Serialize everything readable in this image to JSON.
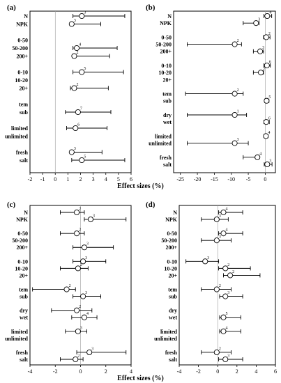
{
  "figure": {
    "shared_xlabel_top": "Effect sizes (%)",
    "shared_xlabel_bottom": "Effect sizes (%)"
  },
  "chart_data": [
    {
      "panel": "(a)",
      "type": "forest",
      "xlim": [
        -2,
        6
      ],
      "xticks": [
        -2,
        -1,
        0,
        1,
        2,
        3,
        4,
        5,
        6
      ],
      "zero_line": true,
      "rows": [
        {
          "label": "N",
          "mean": 2.1,
          "low": 1.4,
          "high": 5.5,
          "n": "3"
        },
        {
          "label": "NPK",
          "mean": 1.3,
          "low": 1.25,
          "high": 3.6,
          "n": "3"
        },
        {
          "label": "",
          "mean": null
        },
        {
          "label": "0-50",
          "mean": null
        },
        {
          "label": "50-200",
          "mean": 1.7,
          "low": 1.4,
          "high": 4.9,
          "n": "4"
        },
        {
          "label": "200+",
          "mean": 1.5,
          "low": 1.35,
          "high": 4.3,
          "n": "2"
        },
        {
          "label": "",
          "mean": null
        },
        {
          "label": "0-10",
          "mean": 2.1,
          "low": 1.4,
          "high": 5.4,
          "n": "5"
        },
        {
          "label": "10-20",
          "mean": null
        },
        {
          "label": "20+",
          "mean": 1.5,
          "low": 1.2,
          "high": 4.2,
          "n": "2"
        },
        {
          "label": "",
          "mean": null
        },
        {
          "label": "tem",
          "mean": null
        },
        {
          "label": "sub",
          "mean": 1.8,
          "low": 0.8,
          "high": 4.4,
          "n": "7"
        },
        {
          "label": "",
          "mean": null
        },
        {
          "label": "limited",
          "mean": 1.6,
          "low": 0.9,
          "high": 4.1,
          "n": "6"
        },
        {
          "label": "unlimited",
          "mean": null
        },
        {
          "label": "",
          "mean": null
        },
        {
          "label": "fresh",
          "mean": 1.3,
          "low": 1.2,
          "high": 3.7,
          "n": "3"
        },
        {
          "label": "salt",
          "mean": 2.1,
          "low": 1.3,
          "high": 5.5,
          "n": "5"
        }
      ]
    },
    {
      "panel": "(b)",
      "type": "forest",
      "xlim": [
        -27,
        3
      ],
      "xticks": [
        -25,
        -20,
        -15,
        -10,
        -5,
        0
      ],
      "zero_line": true,
      "rows": [
        {
          "label": "N",
          "mean": 0.6,
          "low": -0.4,
          "high": 1.9,
          "n": "4"
        },
        {
          "label": "NPK",
          "mean": -2.7,
          "low": -6.5,
          "high": -1.8,
          "n": "3"
        },
        {
          "label": "",
          "mean": null
        },
        {
          "label": "0-50",
          "mean": 0.3,
          "low": -0.5,
          "high": 1.4,
          "n": "2"
        },
        {
          "label": "50-200",
          "mean": -9.0,
          "low": -23.0,
          "high": -7.0,
          "n": "2"
        },
        {
          "label": "200+",
          "mean": -1.5,
          "low": -3.5,
          "high": -0.5,
          "n": "3"
        },
        {
          "label": "",
          "mean": null
        },
        {
          "label": "0-10",
          "mean": 0.5,
          "low": -0.4,
          "high": 1.5,
          "n": "6"
        },
        {
          "label": "10-20",
          "mean": -1.3,
          "low": -3.5,
          "high": -0.5,
          "n": "2"
        },
        {
          "label": "20+",
          "mean": null
        },
        {
          "label": "",
          "mean": null
        },
        {
          "label": "tem",
          "mean": -9.0,
          "low": -23.5,
          "high": -6.5,
          "n": "2"
        },
        {
          "label": "sub",
          "mean": 0.4,
          "low": -0.2,
          "high": 1.1,
          "n": "5"
        },
        {
          "label": "",
          "mean": null
        },
        {
          "label": "dry",
          "mean": -9.0,
          "low": -23.0,
          "high": -5.5,
          "n": "1"
        },
        {
          "label": "wet",
          "mean": 0.3,
          "low": -0.4,
          "high": 1.2,
          "n": "6"
        },
        {
          "label": "",
          "mean": null
        },
        {
          "label": "limited",
          "mean": 0.2,
          "low": -0.4,
          "high": 0.8,
          "n": "4"
        },
        {
          "label": "unlimited",
          "mean": -9.0,
          "low": -23.0,
          "high": -5.0,
          "n": "3"
        },
        {
          "label": "",
          "mean": null
        },
        {
          "label": "fresh",
          "mean": -2.3,
          "low": -6.5,
          "high": -1.8,
          "n": "4"
        },
        {
          "label": "salt",
          "mean": 0.6,
          "low": -0.3,
          "high": 2.0,
          "n": "3"
        }
      ]
    },
    {
      "panel": "(c)",
      "type": "forest",
      "xlim": [
        -4,
        4
      ],
      "xticks": [
        -4,
        -2,
        0,
        2,
        4
      ],
      "zero_line": true,
      "rows": [
        {
          "label": "N",
          "mean": -0.3,
          "low": -1.6,
          "high": 0.3,
          "n": "2"
        },
        {
          "label": "NPK",
          "mean": 0.8,
          "low": 0.3,
          "high": 3.6,
          "n": "3"
        },
        {
          "label": "",
          "mean": null
        },
        {
          "label": "0-50",
          "mean": -0.3,
          "low": -1.6,
          "high": 0.3,
          "n": "2"
        },
        {
          "label": "50-200",
          "mean": null
        },
        {
          "label": "200+",
          "mean": 0.3,
          "low": -0.6,
          "high": 2.6,
          "n": "3"
        },
        {
          "label": "",
          "mean": null
        },
        {
          "label": "0-10",
          "mean": 0.2,
          "low": -0.6,
          "high": 2.0,
          "n": "3"
        },
        {
          "label": "10-20",
          "mean": -0.2,
          "low": -1.6,
          "high": 0.6,
          "n": "2"
        },
        {
          "label": "20+",
          "mean": null
        },
        {
          "label": "",
          "mean": null
        },
        {
          "label": "tem",
          "mean": -1.1,
          "low": -3.8,
          "high": -0.4,
          "n": "2"
        },
        {
          "label": "sub",
          "mean": 0.2,
          "low": -0.6,
          "high": 1.6,
          "n": "3"
        },
        {
          "label": "",
          "mean": null
        },
        {
          "label": "dry",
          "mean": -0.3,
          "low": -2.3,
          "high": 0.9,
          "n": "2"
        },
        {
          "label": "wet",
          "mean": 0.3,
          "low": -0.7,
          "high": 1.3,
          "n": "4"
        },
        {
          "label": "",
          "mean": null
        },
        {
          "label": "limited",
          "mean": -0.2,
          "low": -1.2,
          "high": 0.5,
          "n": "3"
        },
        {
          "label": "unlimited",
          "mean": null
        },
        {
          "label": "",
          "mean": null
        },
        {
          "label": "fresh",
          "mean": 0.7,
          "low": -0.3,
          "high": 3.6,
          "n": "3"
        },
        {
          "label": "salt",
          "mean": -0.4,
          "low": -1.6,
          "high": 0.2,
          "n": "2"
        }
      ]
    },
    {
      "panel": "(d)",
      "type": "forest",
      "xlim": [
        -4,
        6
      ],
      "xticks": [
        -4,
        -2,
        0,
        2,
        4,
        6
      ],
      "zero_line": true,
      "rows": [
        {
          "label": "N",
          "mean": 0.6,
          "low": 0.1,
          "high": 2.6,
          "n": "4"
        },
        {
          "label": "NPK",
          "mean": -0.1,
          "low": -1.7,
          "high": 1.1,
          "n": "3"
        },
        {
          "label": "",
          "mean": null
        },
        {
          "label": "0-50",
          "mean": 0.6,
          "low": 0.1,
          "high": 2.6,
          "n": "4"
        },
        {
          "label": "50-200",
          "mean": -0.1,
          "low": -1.7,
          "high": 1.4,
          "n": "3"
        },
        {
          "label": "200+",
          "mean": null
        },
        {
          "label": "",
          "mean": null
        },
        {
          "label": "0-10",
          "mean": -1.3,
          "low": -3.3,
          "high": 0.1,
          "n": "3"
        },
        {
          "label": "10-20",
          "mean": 0.8,
          "low": 0.1,
          "high": 3.4,
          "n": "2"
        },
        {
          "label": "20+",
          "mean": 1.3,
          "low": 0.6,
          "high": 4.4,
          "n": "2"
        },
        {
          "label": "",
          "mean": null
        },
        {
          "label": "tem",
          "mean": -0.1,
          "low": -1.7,
          "high": 1.4,
          "n": "2"
        },
        {
          "label": "sub",
          "mean": 0.8,
          "low": 0.2,
          "high": 2.6,
          "n": "3"
        },
        {
          "label": "",
          "mean": null
        },
        {
          "label": "dry",
          "mean": null
        },
        {
          "label": "wet",
          "mean": 0.6,
          "low": 0.2,
          "high": 2.4,
          "n": "5"
        },
        {
          "label": "",
          "mean": null
        },
        {
          "label": "limited",
          "mean": 0.6,
          "low": 0.2,
          "high": 2.4,
          "n": "4"
        },
        {
          "label": "unlimited",
          "mean": null
        },
        {
          "label": "",
          "mean": null
        },
        {
          "label": "fresh",
          "mean": -0.1,
          "low": -1.7,
          "high": 1.4,
          "n": "2"
        },
        {
          "label": "salt",
          "mean": 0.8,
          "low": 0.1,
          "high": 2.6,
          "n": "3"
        }
      ]
    }
  ]
}
